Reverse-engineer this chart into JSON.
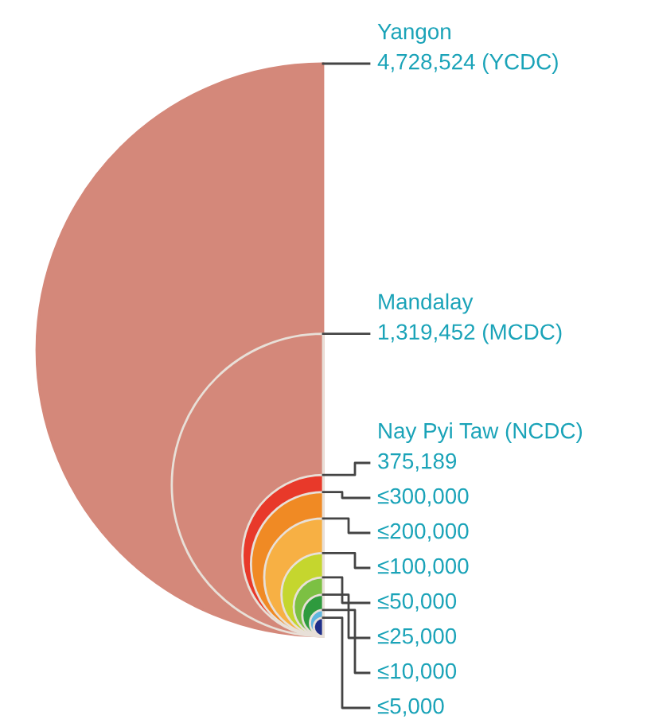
{
  "chart_data": {
    "type": "other",
    "categories": [
      "Yangon",
      "Mandalay",
      "Nay Pyi Taw (NCDC)",
      null,
      null,
      null,
      null,
      null,
      null,
      null
    ],
    "values": [
      4728524,
      1319452,
      375189,
      300000,
      200000,
      100000,
      50000,
      25000,
      10000,
      5000
    ],
    "value_labels": [
      "4,728,524 (YCDC)",
      "1,319,452 (MCDC)",
      "375,189",
      "≤300,000",
      "≤200,000",
      "≤100,000",
      "≤50,000",
      "≤25,000",
      "≤10,000",
      "≤5,000"
    ],
    "colors": [
      "#d4887a",
      "#d4887a",
      "#e8392a",
      "#f08a24",
      "#f7b044",
      "#c5d62e",
      "#7cc043",
      "#2e9a3e",
      "#5fb6e0",
      "#1f2f8a"
    ]
  }
}
